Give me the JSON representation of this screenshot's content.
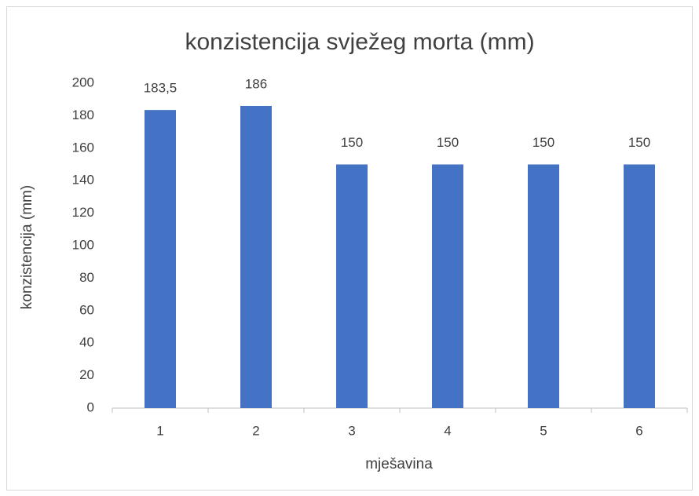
{
  "chart_data": {
    "type": "bar",
    "title": "konzistencija svježeg morta (mm)",
    "x_label": "mješavina",
    "y_label": "konzistencija (mm)",
    "categories": [
      "1",
      "2",
      "3",
      "4",
      "5",
      "6"
    ],
    "values": [
      183.5,
      186,
      150,
      150,
      150,
      150
    ],
    "value_labels": [
      "183,5",
      "186",
      "150",
      "150",
      "150",
      "150"
    ],
    "color": "#4472c4",
    "ylim": [
      0,
      200
    ],
    "yticks": [
      0,
      20,
      40,
      60,
      80,
      100,
      120,
      140,
      160,
      180,
      200
    ],
    "grid": false
  }
}
